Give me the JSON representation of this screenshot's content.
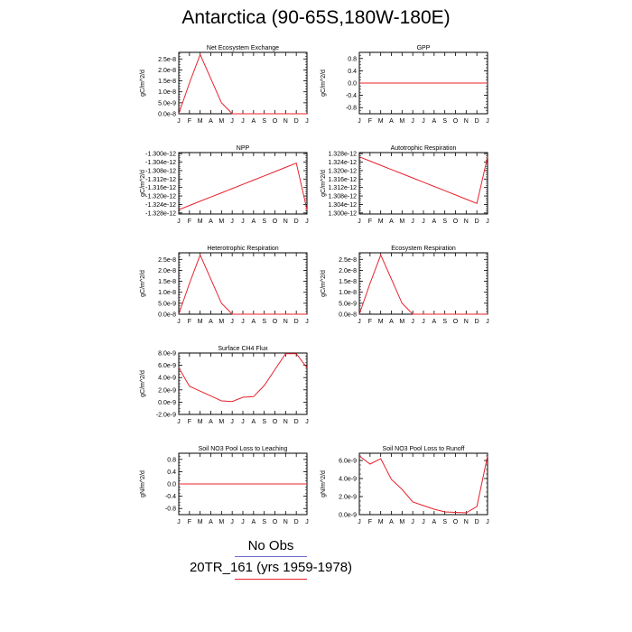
{
  "title": "Antarctica (90-65S,180W-180E)",
  "months": [
    "J",
    "F",
    "M",
    "A",
    "M",
    "J",
    "J",
    "A",
    "S",
    "O",
    "N",
    "D",
    "J"
  ],
  "colors": {
    "model": "#e8212b",
    "obs_rule": "#6a6ad0",
    "model_rule": "#e8212b"
  },
  "legend": {
    "obs_label": "No Obs",
    "model_label": "20TR_161 (yrs 1959-1978)"
  },
  "chart_data": [
    {
      "type": "line",
      "title": "Net Ecosystem Exchange",
      "ylabel": "gC/m^2/d",
      "ylim": [
        0.0,
        2.8e-08
      ],
      "yticks": [
        "0.0e-8",
        "5.0e-9",
        "1.0e-8",
        "1.5e-8",
        "2.0e-8",
        "2.5e-8"
      ],
      "ytick_values": [
        0.0,
        5e-09,
        1e-08,
        1.5e-08,
        2e-08,
        2.5e-08
      ],
      "yticks_shown": [
        "0.0e-8",
        "5.0e-9",
        "1.0e-8",
        "1.5e-8",
        "2.0e-8",
        "2.5e-8"
      ],
      "x": [
        "J",
        "F",
        "M",
        "A",
        "M",
        "J",
        "J",
        "A",
        "S",
        "O",
        "N",
        "D",
        "J"
      ],
      "series": [
        {
          "values": [
            0.0,
            1.4e-08,
            2.7e-08,
            1.6e-08,
            5e-09,
            0.0,
            0.0,
            0.0,
            0.0,
            0.0,
            0.0,
            0.0,
            0.0
          ]
        }
      ]
    },
    {
      "type": "line",
      "title": "GPP",
      "ylabel": "gC/m^2/d",
      "ylim": [
        -1.0,
        1.0
      ],
      "yticks": [
        "-0.8",
        "-0.4",
        "0.0",
        "0.4",
        "0.8"
      ],
      "ytick_values": [
        -0.8,
        -0.4,
        0.0,
        0.4,
        0.8
      ],
      "x": [
        "J",
        "F",
        "M",
        "A",
        "M",
        "J",
        "J",
        "A",
        "S",
        "O",
        "N",
        "D",
        "J"
      ],
      "series": [
        {
          "values": [
            0,
            0,
            0,
            0,
            0,
            0,
            0,
            0,
            0,
            0,
            0,
            0,
            0
          ]
        }
      ]
    },
    {
      "type": "line",
      "title": "NPP",
      "ylabel": "gC/m^2/d",
      "ylim": [
        -1.3285e-12,
        -1.2995e-12
      ],
      "yticks": [
        "-1.328e-12",
        "-1.324e-12",
        "-1.320e-12",
        "-1.316e-12",
        "-1.312e-12",
        "-1.308e-12",
        "-1.304e-12",
        "-1.300e-12"
      ],
      "ytick_values": [
        -1.328e-12,
        -1.324e-12,
        -1.32e-12,
        -1.316e-12,
        -1.312e-12,
        -1.308e-12,
        -1.304e-12,
        -1.3e-12
      ],
      "x": [
        "J",
        "F",
        "M",
        "A",
        "M",
        "J",
        "J",
        "A",
        "S",
        "O",
        "N",
        "D",
        "J"
      ],
      "series": [
        {
          "values": [
            -1.3265e-12,
            -1.3245e-12,
            -1.3225e-12,
            -1.3205e-12,
            -1.3185e-12,
            -1.3165e-12,
            -1.3145e-12,
            -1.3125e-12,
            -1.3105e-12,
            -1.3085e-12,
            -1.3065e-12,
            -1.3045e-12,
            -1.3265e-12
          ]
        }
      ]
    },
    {
      "type": "line",
      "title": "Autotrophic Respiration",
      "ylabel": "gC/m^2/d",
      "ylim": [
        1.2995e-12,
        1.3285e-12
      ],
      "yticks": [
        "1.300e-12",
        "1.304e-12",
        "1.308e-12",
        "1.312e-12",
        "1.316e-12",
        "1.320e-12",
        "1.324e-12",
        "1.328e-12"
      ],
      "ytick_values": [
        1.3e-12,
        1.304e-12,
        1.308e-12,
        1.312e-12,
        1.316e-12,
        1.32e-12,
        1.324e-12,
        1.328e-12
      ],
      "x": [
        "J",
        "F",
        "M",
        "A",
        "M",
        "J",
        "J",
        "A",
        "S",
        "O",
        "N",
        "D",
        "J"
      ],
      "series": [
        {
          "values": [
            1.3265e-12,
            1.3245e-12,
            1.3225e-12,
            1.3205e-12,
            1.3185e-12,
            1.3165e-12,
            1.3145e-12,
            1.3125e-12,
            1.3105e-12,
            1.3085e-12,
            1.3065e-12,
            1.3045e-12,
            1.3265e-12
          ]
        }
      ]
    },
    {
      "type": "line",
      "title": "Heterotrophic Respiration",
      "ylabel": "gC/m^2/d",
      "ylim": [
        0.0,
        2.8e-08
      ],
      "yticks": [
        "0.0e-8",
        "5.0e-9",
        "1.0e-8",
        "1.5e-8",
        "2.0e-8",
        "2.5e-8"
      ],
      "ytick_values": [
        0.0,
        5e-09,
        1e-08,
        1.5e-08,
        2e-08,
        2.5e-08
      ],
      "x": [
        "J",
        "F",
        "M",
        "A",
        "M",
        "J",
        "J",
        "A",
        "S",
        "O",
        "N",
        "D",
        "J"
      ],
      "series": [
        {
          "values": [
            0.0,
            1.4e-08,
            2.7e-08,
            1.6e-08,
            5e-09,
            0.0,
            0.0,
            0.0,
            0.0,
            0.0,
            0.0,
            0.0,
            0.0
          ]
        }
      ]
    },
    {
      "type": "line",
      "title": "Ecosystem Respiration",
      "ylabel": "gC/m^2/d",
      "ylim": [
        0.0,
        2.8e-08
      ],
      "yticks": [
        "0.0e-8",
        "5.0e-9",
        "1.0e-8",
        "1.5e-8",
        "2.0e-8",
        "2.5e-8"
      ],
      "ytick_values": [
        0.0,
        5e-09,
        1e-08,
        1.5e-08,
        2e-08,
        2.5e-08
      ],
      "x": [
        "J",
        "F",
        "M",
        "A",
        "M",
        "J",
        "J",
        "A",
        "S",
        "O",
        "N",
        "D",
        "J"
      ],
      "series": [
        {
          "values": [
            0.0,
            1.4e-08,
            2.7e-08,
            1.6e-08,
            5e-09,
            0.0,
            0.0,
            0.0,
            0.0,
            0.0,
            0.0,
            0.0,
            0.0
          ]
        }
      ]
    },
    {
      "type": "line",
      "title": "Surface CH4 Flux",
      "ylabel": "gC/m^2/d",
      "ylim": [
        -2e-09,
        8e-09
      ],
      "yticks": [
        "-2.0e-9",
        "0.0e-9",
        "2.0e-9",
        "4.0e-9",
        "6.0e-9",
        "8.0e-9"
      ],
      "ytick_values": [
        -2e-09,
        0.0,
        2e-09,
        4e-09,
        6e-09,
        8e-09
      ],
      "x": [
        "J",
        "F",
        "M",
        "A",
        "M",
        "J",
        "J",
        "A",
        "S",
        "O",
        "N",
        "D",
        "J"
      ],
      "series": [
        {
          "values": [
            5.6e-09,
            2.6e-09,
            1.8e-09,
            1e-09,
            2e-10,
            1e-10,
            8e-10,
            9e-10,
            2.7e-09,
            5.3e-09,
            7.9e-09,
            7.9e-09,
            5.6e-09
          ]
        }
      ]
    },
    {
      "type": "line",
      "title": "Soil NO3 Pool Loss to Leaching",
      "ylabel": "gN/m^2/d",
      "ylim": [
        -1.0,
        1.0
      ],
      "yticks": [
        "-0.8",
        "-0.4",
        "0.0",
        "0.4",
        "0.8"
      ],
      "ytick_values": [
        -0.8,
        -0.4,
        0.0,
        0.4,
        0.8
      ],
      "x": [
        "J",
        "F",
        "M",
        "A",
        "M",
        "J",
        "J",
        "A",
        "S",
        "O",
        "N",
        "D",
        "J"
      ],
      "series": [
        {
          "values": [
            0,
            0,
            0,
            0,
            0,
            0,
            0,
            0,
            0,
            0,
            0,
            0,
            0
          ]
        }
      ]
    },
    {
      "type": "line",
      "title": "Soil NO3 Pool Loss to Runoff",
      "ylabel": "gN/m^2/d",
      "ylim": [
        0.0,
        6.8e-09
      ],
      "yticks": [
        "0.0e-9",
        "2.0e-9",
        "4.0e-9",
        "6.0e-9"
      ],
      "ytick_values": [
        0.0,
        2e-09,
        4e-09,
        6e-09
      ],
      "x": [
        "J",
        "F",
        "M",
        "A",
        "M",
        "J",
        "J",
        "A",
        "S",
        "O",
        "N",
        "D",
        "J"
      ],
      "series": [
        {
          "values": [
            6.5e-09,
            5.6e-09,
            6.2e-09,
            3.9e-09,
            2.8e-09,
            1.4e-09,
            1e-09,
            6e-10,
            3e-10,
            2.5e-10,
            2e-10,
            9e-10,
            6.5e-09
          ]
        }
      ]
    }
  ]
}
